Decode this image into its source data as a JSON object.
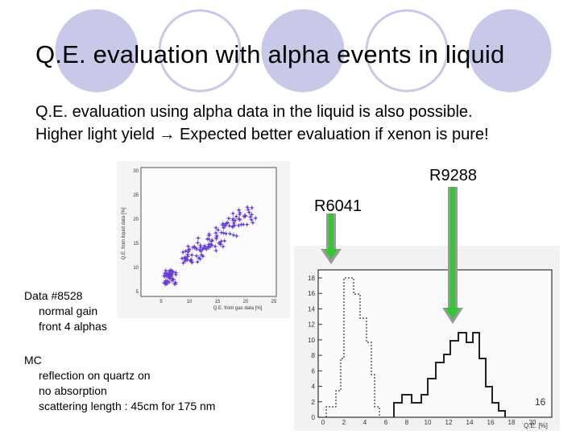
{
  "title": "Q.E. evaluation with alpha events in liquid",
  "body": {
    "line1": "Q.E. evaluation using alpha data in the liquid is also possible.",
    "line2_a": "Higher light yield",
    "line2_b": "Expected better evaluation if xenon is pure!"
  },
  "labels": {
    "r9288": "R9288",
    "r6041": "R6041"
  },
  "data_note": {
    "heading": "Data #8528",
    "lines": [
      "normal gain",
      "front 4 alphas"
    ]
  },
  "mc_note": {
    "heading": "MC",
    "lines": [
      "reflection on quartz on",
      "no absorption",
      "scattering length : 45cm for 175 nm"
    ]
  },
  "scatter_plot": {
    "ylabel": "Q.E. from liquid data [%]",
    "xlabel": "Q.E. from gas data [%]",
    "y_ticks": [
      "30",
      "25",
      "20",
      "15",
      "10",
      "5"
    ],
    "x_ticks": [
      "5",
      "10",
      "15",
      "20",
      "25"
    ]
  },
  "histogram": {
    "xlabel": "Q.E. [%]",
    "y_ticks": [
      "18",
      "16",
      "14",
      "12",
      "10",
      "8",
      "6",
      "4",
      "2",
      "0"
    ],
    "x_ticks": [
      "0",
      "2",
      "4",
      "6",
      "8",
      "10",
      "12",
      "14",
      "16",
      "18",
      "20"
    ]
  },
  "page_number": "16",
  "colors": {
    "circle": "#c8c8e8",
    "arrow": "#22bb22",
    "points": "#6a3dd6",
    "arrow_gray": "#888888"
  }
}
